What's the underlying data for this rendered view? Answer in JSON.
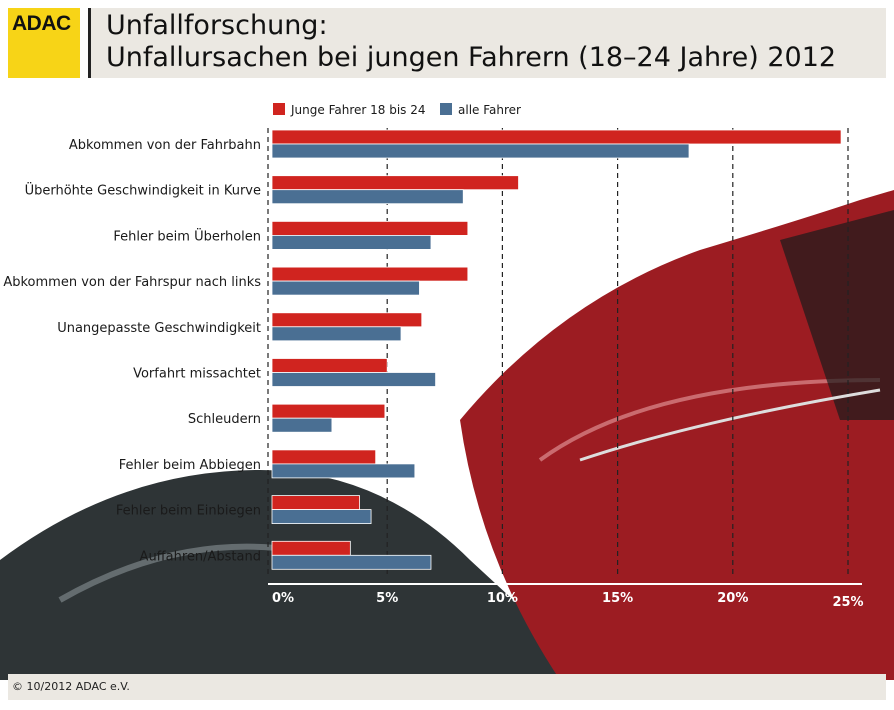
{
  "header": {
    "logo": "ADAC",
    "title_line1": "Unfallforschung:",
    "title_line2": "Unfallursachen bei jungen Fahrern (18–24 Jahre) 2012"
  },
  "footer": {
    "copyright": "© 10/2012 ADAC e.V."
  },
  "colors": {
    "junge": "#d0241f",
    "alle": "#4a6f93",
    "logo": "#f7d417"
  },
  "chart_data": {
    "type": "bar",
    "orientation": "horizontal",
    "categories": [
      "Abkommen von der Fahrbahn",
      "Überhöhte Geschwindigkeit in Kurve",
      "Fehler beim Überholen",
      "Abkommen von der Fahrspur nach links",
      "Unangepasste Geschwindigkeit",
      "Vorfahrt missachtet",
      "Schleudern",
      "Fehler beim Abbiegen",
      "Fehler beim Einbiegen",
      "Auffahren/Abstand"
    ],
    "series": [
      {
        "name": "Junge Fahrer 18 bis 24",
        "color": "#d0241f",
        "values": [
          24.7,
          10.7,
          8.5,
          8.5,
          6.5,
          5.0,
          4.9,
          4.5,
          3.8,
          3.4
        ]
      },
      {
        "name": "alle Fahrer",
        "color": "#4a6f93",
        "values": [
          18.1,
          8.3,
          6.9,
          6.4,
          5.6,
          7.1,
          2.6,
          6.2,
          4.3,
          6.9
        ]
      }
    ],
    "xlim": [
      0,
      25
    ],
    "ticks": [
      "0%",
      "5%",
      "10%",
      "15%",
      "20%",
      "25%"
    ],
    "grid": true,
    "legend": "top"
  }
}
